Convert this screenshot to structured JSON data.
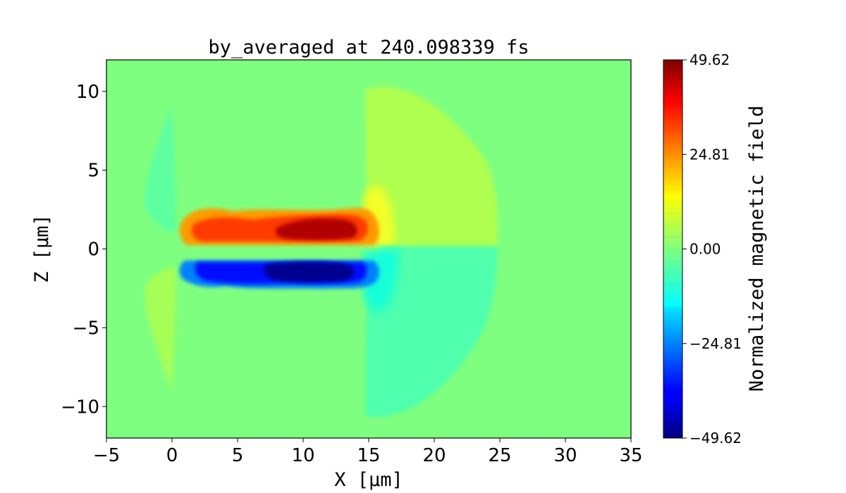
{
  "chart_data": {
    "type": "heatmap",
    "title": "by_averaged at 240.098339 fs",
    "xlabel": "X [μm]",
    "ylabel": "Z [μm]",
    "xlim": [
      -5,
      35
    ],
    "ylim": [
      -12,
      12
    ],
    "x_ticks": [
      {
        "value": -5,
        "label": "−5"
      },
      {
        "value": 0,
        "label": "0"
      },
      {
        "value": 5,
        "label": "5"
      },
      {
        "value": 10,
        "label": "10"
      },
      {
        "value": 15,
        "label": "15"
      },
      {
        "value": 20,
        "label": "20"
      },
      {
        "value": 25,
        "label": "25"
      },
      {
        "value": 30,
        "label": "30"
      },
      {
        "value": 35,
        "label": "35"
      }
    ],
    "y_ticks": [
      {
        "value": 10,
        "label": "10"
      },
      {
        "value": 5,
        "label": "5"
      },
      {
        "value": 0,
        "label": "0"
      },
      {
        "value": -5,
        "label": "−5"
      },
      {
        "value": -10,
        "label": "−10"
      }
    ],
    "colorbar": {
      "label": "Normalized magnetic field",
      "min": -49.62,
      "max": 49.62,
      "ticks": [
        {
          "value": 49.62,
          "label": "49.62"
        },
        {
          "value": 24.81,
          "label": "24.81"
        },
        {
          "value": 0.0,
          "label": "0.00"
        },
        {
          "value": -24.81,
          "label": "−24.81"
        },
        {
          "value": -49.62,
          "label": "−49.62"
        }
      ],
      "colormap": "jet"
    },
    "grid": false,
    "features": [
      {
        "name": "positive lobe",
        "x_range": [
          1,
          16
        ],
        "z_range": [
          0.3,
          2.6
        ],
        "peak_value": 49.62
      },
      {
        "name": "negative lobe",
        "x_range": [
          1,
          16
        ],
        "z_range": [
          -2.5,
          -0.3
        ],
        "peak_value": -49.62
      },
      {
        "name": "front sheath",
        "x_range": [
          15,
          24
        ],
        "z_range": [
          -10.7,
          10.6
        ],
        "upper_value": 7,
        "lower_value": -7
      },
      {
        "name": "rear sheath",
        "x_range": [
          -2.5,
          1
        ],
        "z_range": [
          -9,
          9
        ],
        "upper_value": -3,
        "lower_value": 3
      }
    ]
  }
}
